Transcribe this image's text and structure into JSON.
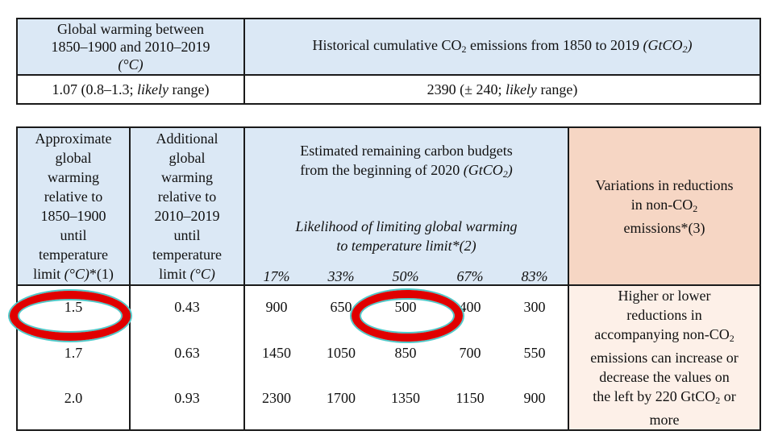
{
  "top_table": {
    "col1_header_line1": "Global warming between",
    "col1_header_line2": "1850–1900 and 2010–2019",
    "col1_header_unit": "(°C)",
    "col2_header_pre": "Historical cumulative CO",
    "col2_header_sub": "2",
    "col2_header_post": " emissions from 1850 to 2019 ",
    "col2_header_unit_pre": "(GtCO",
    "col2_header_unit_sub": "2",
    "col2_header_unit_post": ")",
    "col1_value_pre": "1.07 (0.8–1.3; ",
    "col1_value_italic": "likely",
    "col1_value_post": " range)",
    "col2_value_pre": "2390 (± 240; ",
    "col2_value_italic": "likely",
    "col2_value_post": " range)"
  },
  "main_table": {
    "col1_header": [
      "Approximate",
      "global",
      "warming",
      "relative to",
      "1850–1900",
      "until",
      "temperature"
    ],
    "col1_header_last_pre": "limit ",
    "col1_header_last_italic": "(°C)",
    "col1_header_last_post": "*(1)",
    "col2_header": [
      "Additional",
      "global",
      "warming",
      "relative to",
      "2010–2019",
      "until",
      "temperature"
    ],
    "col2_header_last_pre": "limit ",
    "col2_header_last_italic": "(°C)",
    "budget_title_line1": "Estimated remaining carbon budgets",
    "budget_title_line2_pre": "from the beginning of 2020 ",
    "budget_title_unit_pre": "(GtCO",
    "budget_title_unit_sub": "2",
    "budget_title_unit_post": ")",
    "likelihood_line1": "Likelihood of limiting global warming",
    "likelihood_line2": "to temperature limit*(2)",
    "percentages": [
      "17%",
      "33%",
      "50%",
      "67%",
      "83%"
    ],
    "variations_header_line1": "Variations in reductions",
    "variations_header_line2_pre": "in non-CO",
    "variations_header_line2_sub": "2",
    "variations_header_line3": "emissions*(3)",
    "rows": [
      {
        "warming": "1.5",
        "additional": "0.43",
        "budgets": [
          "900",
          "650",
          "500",
          "400",
          "300"
        ]
      },
      {
        "warming": "1.7",
        "additional": "0.63",
        "budgets": [
          "1450",
          "1050",
          "850",
          "700",
          "550"
        ]
      },
      {
        "warming": "2.0",
        "additional": "0.93",
        "budgets": [
          "2300",
          "1700",
          "1350",
          "1150",
          "900"
        ]
      }
    ],
    "note_line1": "Higher or lower",
    "note_line2": "reductions in",
    "note_line3_pre": "accompanying non-CO",
    "note_line3_sub": "2",
    "note_line4": "emissions can increase or",
    "note_line5": "decrease the values on",
    "note_line6_pre": "the left by 220 GtCO",
    "note_line6_sub": "2",
    "note_line6_post": " or",
    "note_line7": "more"
  },
  "annotations": {
    "oval_color": "#e00000",
    "oval_outline_color": "#4fc9c9"
  }
}
